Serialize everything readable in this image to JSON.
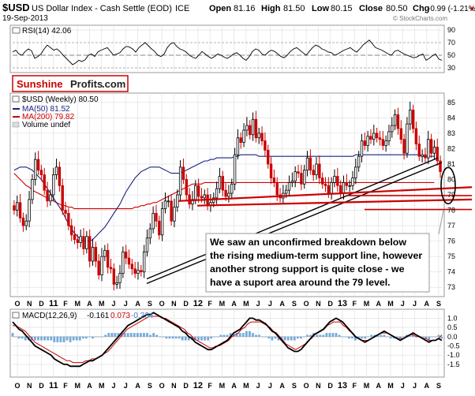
{
  "header": {
    "symbol": "$USD",
    "name": "US Dollar Index - Cash Settle (EOD)",
    "exchange": "ICE",
    "date": "19-Sep-2013",
    "open_label": "Open",
    "open": "81.16",
    "high_label": "High",
    "high": "81.50",
    "low_label": "Low",
    "low": "80.15",
    "close_label": "Close",
    "close": "80.50",
    "chg_label": "Chg",
    "chg": "-0.99 (-1.21%)",
    "chg_marker": "▼",
    "watermark": "© StockCharts.com"
  },
  "logo": {
    "part1": "Sunshine",
    "part2": "Profits",
    "part3": ".com",
    "red": "#cc0000"
  },
  "annotation": {
    "lines": [
      "We saw an unconfirmed breakdown below",
      "the rising medium-term support line, however",
      "another strong support is quite close - we",
      "have a suport area around the 79 level."
    ]
  },
  "x_labels": [
    "O",
    "N",
    "D",
    "11",
    "F",
    "M",
    "A",
    "M",
    "J",
    "J",
    "A",
    "S",
    "O",
    "N",
    "D",
    "12",
    "F",
    "M",
    "A",
    "M",
    "J",
    "J",
    "A",
    "S",
    "O",
    "N",
    "D",
    "13",
    "F",
    "M",
    "A",
    "M",
    "J",
    "J",
    "A",
    "S"
  ],
  "chart_data": [
    {
      "type": "line",
      "panel": "RSI",
      "legend": "RSI(14) 42.06",
      "ylim": [
        25,
        95
      ],
      "yticks": [
        30,
        50,
        70,
        90
      ],
      "y_labels": [
        "90",
        "70",
        "50",
        "30"
      ],
      "values": [
        55,
        58,
        52,
        50,
        56,
        60,
        57,
        45,
        48,
        52,
        60,
        66,
        62,
        58,
        60,
        56,
        50,
        45,
        40,
        35,
        38,
        42,
        40,
        43,
        50,
        52,
        48,
        55,
        58,
        60,
        62,
        56,
        50,
        52,
        54,
        60,
        64,
        63,
        60,
        55,
        62,
        66,
        70,
        65,
        60,
        56,
        50,
        48,
        52,
        62,
        68,
        70,
        64,
        60,
        58,
        55,
        50,
        47,
        45,
        50,
        56,
        52,
        48,
        45,
        48,
        52,
        50,
        47,
        45,
        48,
        52,
        54,
        50,
        45,
        42,
        48,
        56,
        60,
        58,
        52,
        50,
        55,
        58,
        56,
        52,
        48,
        46,
        50,
        56,
        60,
        62,
        58,
        54,
        50,
        56,
        62,
        66,
        64,
        60,
        58,
        55,
        54,
        50,
        52,
        55,
        58,
        60,
        62,
        58,
        55,
        60,
        66,
        70,
        74,
        68,
        62,
        60,
        58,
        55,
        52,
        50,
        56,
        58,
        55,
        52,
        50,
        48,
        46,
        47,
        50,
        52,
        42,
        45,
        49,
        52,
        44,
        42
      ],
      "colors": {
        "line": "#000000"
      }
    },
    {
      "type": "candlestick",
      "panel": "Price",
      "title": "$USD (Weekly) 80.50",
      "legend": [
        "MA(50) 81.52",
        "MA(200) 79.82",
        "Volume undef"
      ],
      "ylim": [
        72.5,
        85.5
      ],
      "yticks": [
        73,
        74,
        75,
        76,
        77,
        78,
        79,
        80,
        81,
        82,
        83,
        84,
        85
      ],
      "y_labels": [
        "85",
        "84",
        "83",
        "82",
        "81",
        "80",
        "79",
        "78",
        "77",
        "76",
        "75",
        "74",
        "73"
      ],
      "closes": [
        78.0,
        78.5,
        77.5,
        77.0,
        77.3,
        78.7,
        80.0,
        81.3,
        80.6,
        80.3,
        79.3,
        78.6,
        79.0,
        80.3,
        80.8,
        79.6,
        78.0,
        77.8,
        77.0,
        76.4,
        76.1,
        75.9,
        76.3,
        75.5,
        76.3,
        74.7,
        75.6,
        74.7,
        73.8,
        75.0,
        75.4,
        74.3,
        74.2,
        73.2,
        73.3,
        73.9,
        75.3,
        74.9,
        74.5,
        74.2,
        73.9,
        74.1,
        74.0,
        75.3,
        76.2,
        76.8,
        77.8,
        77.3,
        76.4,
        78.1,
        78.6,
        78.6,
        77.3,
        78.2,
        79.0,
        80.8,
        80.0,
        79.0,
        78.4,
        78.7,
        79.6,
        78.9,
        78.8,
        79.0,
        78.3,
        78.5,
        78.8,
        79.4,
        80.2,
        79.3,
        78.9,
        79.1,
        79.7,
        81.6,
        82.7,
        82.4,
        83.2,
        83.5,
        82.9,
        83.9,
        82.7,
        83.0,
        82.5,
        81.9,
        81.0,
        80.1,
        79.8,
        79.0,
        78.8,
        79.1,
        79.3,
        79.8,
        79.9,
        80.5,
        80.4,
        79.7,
        80.6,
        81.4,
        80.6,
        80.3,
        81.0,
        80.1,
        79.7,
        79.6,
        79.1,
        79.8,
        80.2,
        79.6,
        79.1,
        79.8,
        79.6,
        79.6,
        80.1,
        80.8,
        81.5,
        82.5,
        82.2,
        82.8,
        82.6,
        83.0,
        82.7,
        82.6,
        82.2,
        82.5,
        83.1,
        83.5,
        84.2,
        83.3,
        82.6,
        81.7,
        83.6,
        84.5,
        83.3,
        82.3,
        81.5,
        81.6,
        81.4,
        82.6,
        81.7,
        82.1,
        81.2,
        80.5
      ],
      "ma50": [
        80.6,
        80.7,
        80.8,
        80.8,
        80.8,
        80.7,
        80.6,
        80.4,
        80.2,
        80.0,
        79.7,
        79.4,
        79.1,
        78.8,
        78.5,
        78.2,
        77.9,
        77.5,
        77.1,
        76.8,
        76.5,
        76.3,
        76.1,
        76.0,
        76.0,
        76.0,
        76.1,
        76.3,
        76.5,
        76.7,
        76.9,
        77.2,
        77.5,
        77.8,
        78.1,
        78.4,
        78.8,
        79.2,
        79.5,
        79.8,
        80.1,
        80.3,
        80.5,
        80.6,
        80.7,
        80.8,
        80.8,
        80.8,
        80.8,
        80.7,
        80.6,
        80.5,
        80.4,
        80.4,
        80.4,
        80.4,
        80.5,
        80.6,
        80.7,
        80.8,
        80.9,
        81.0,
        81.1,
        81.2,
        81.2,
        81.3,
        81.3,
        81.4,
        81.4,
        81.4,
        81.4,
        81.4,
        81.4,
        81.5,
        81.5,
        81.6,
        81.6,
        81.6,
        81.6,
        81.6,
        81.6,
        81.5,
        81.5,
        81.5,
        81.5,
        81.5,
        81.5,
        81.5,
        81.5,
        81.5,
        81.5,
        81.5,
        81.5,
        81.5,
        81.5,
        81.5,
        81.5,
        81.5,
        81.5,
        81.5,
        81.5,
        81.5,
        81.5,
        81.5,
        81.5,
        81.5,
        81.5,
        81.5,
        81.5,
        81.5,
        81.5,
        81.5,
        81.5,
        81.6,
        81.6,
        81.6,
        81.6,
        81.6,
        81.6,
        81.6,
        81.6,
        81.6,
        81.6,
        81.6,
        81.6,
        81.6,
        81.6,
        81.6,
        81.6,
        81.6,
        81.6,
        81.6,
        81.6,
        81.6,
        81.6,
        81.5,
        81.5,
        81.5,
        81.5,
        81.5
      ],
      "ma200": [
        80.4,
        80.2,
        80.0,
        79.8,
        79.6,
        79.5,
        79.3,
        79.2,
        79.1,
        79.0,
        78.9,
        78.8,
        78.7,
        78.6,
        78.5,
        78.4,
        78.3,
        78.3,
        78.2,
        78.2,
        78.1,
        78.1,
        78.1,
        78.1,
        78.1,
        78.1,
        78.1,
        78.1,
        78.1,
        78.1,
        78.1,
        78.1,
        78.1,
        78.1,
        78.1,
        78.1,
        78.1,
        78.1,
        78.1,
        78.1,
        78.2,
        78.2,
        78.3,
        78.3,
        78.4,
        78.4,
        78.5,
        78.5,
        78.6,
        78.7,
        78.8,
        78.9,
        79.0,
        79.1,
        79.2,
        79.3,
        79.4,
        79.5,
        79.6,
        79.7,
        79.7,
        79.7,
        79.7,
        79.8,
        79.8,
        79.8,
        79.8,
        79.8,
        79.8,
        79.8,
        79.8,
        79.8,
        79.8,
        79.8,
        79.8,
        79.8,
        79.8,
        79.8,
        79.8,
        79.8,
        79.8,
        79.8,
        79.8,
        79.8,
        79.8,
        79.8,
        79.8,
        79.8,
        79.8,
        79.8,
        79.8,
        79.8,
        79.8,
        79.8,
        79.8,
        79.8,
        79.8,
        79.8,
        79.8,
        79.8,
        79.8,
        79.8,
        79.8,
        79.8,
        79.8,
        79.8,
        79.8,
        79.8,
        79.8,
        79.8,
        79.8,
        79.8,
        79.8,
        79.8,
        79.8,
        79.8,
        79.8,
        79.8,
        79.8,
        79.8,
        79.8,
        79.8,
        79.8,
        79.8,
        79.8,
        79.8,
        79.8,
        79.8,
        79.8,
        79.8,
        79.8,
        79.8,
        79.8,
        79.8,
        79.8,
        79.8,
        79.8,
        79.8,
        79.8,
        79.8
      ],
      "colors": {
        "up": "#000000",
        "down": "#cc0000",
        "ma50": "#1a237e",
        "ma200": "#cc0000",
        "support": "#cc0000",
        "trend": "#000000",
        "ellipse": "#000000"
      }
    },
    {
      "type": "line",
      "panel": "MACD",
      "legend_name": "MACD(12,26,9)",
      "legend_macd": "-0.161",
      "legend_signal": "0.073",
      "legend_hist": "-0.234",
      "ylim": [
        -2.1,
        1.4
      ],
      "yticks": [
        -1.5,
        -1.0,
        -0.5,
        0.0,
        0.5,
        1.0
      ],
      "y_labels": [
        "1.0",
        "0.5",
        "0.0",
        "-0.5",
        "-1.0",
        "-1.5"
      ],
      "macd": [
        0.8,
        0.6,
        0.4,
        0.3,
        0.1,
        -0.1,
        -0.3,
        -0.5,
        -0.6,
        -0.7,
        -0.8,
        -0.9,
        -1.0,
        -1.2,
        -1.3,
        -1.4,
        -1.5,
        -1.5,
        -1.6,
        -1.6,
        -1.6,
        -1.6,
        -1.5,
        -1.4,
        -1.3,
        -1.3,
        -1.2,
        -1.1,
        -1.0,
        -0.8,
        -0.6,
        -0.4,
        -0.2,
        0.0,
        0.2,
        0.4,
        0.6,
        0.7,
        0.8,
        0.9,
        1.0,
        1.1,
        1.2,
        1.2,
        1.3,
        1.2,
        1.1,
        1.0,
        0.9,
        0.8,
        0.7,
        0.6,
        0.5,
        0.3,
        0.2,
        0.0,
        -0.1,
        -0.3,
        -0.4,
        -0.5,
        -0.6,
        -0.7,
        -0.7,
        -0.6,
        -0.5,
        -0.4,
        -0.3,
        -0.2,
        0.0,
        0.2,
        0.3,
        0.4,
        0.6,
        0.8,
        1.0,
        1.0,
        0.9,
        0.9,
        0.8,
        0.7,
        0.5,
        0.3,
        0.2,
        0.0,
        -0.2,
        -0.4,
        -0.6,
        -0.7,
        -0.8,
        -0.8,
        -0.7,
        -0.5,
        -0.3,
        -0.1,
        0.1,
        0.2,
        0.3,
        0.4,
        0.6,
        0.8,
        0.9,
        1.0,
        0.9,
        0.8,
        0.6,
        0.4,
        0.2,
        0.0,
        -0.1,
        -0.2,
        -0.3,
        -0.2,
        -0.1,
        0.0,
        0.1,
        0.2,
        0.3,
        0.2,
        0.1,
        0.0,
        -0.1,
        -0.2,
        -0.1,
        0.0,
        0.1,
        0.2,
        0.1,
        0.0,
        -0.1,
        -0.2,
        -0.3,
        -0.2,
        -0.2,
        -0.1,
        -0.2
      ],
      "signal": [
        0.6,
        0.6,
        0.5,
        0.4,
        0.3,
        0.1,
        -0.1,
        -0.3,
        -0.4,
        -0.5,
        -0.6,
        -0.7,
        -0.8,
        -0.9,
        -1.0,
        -1.1,
        -1.2,
        -1.3,
        -1.3,
        -1.4,
        -1.4,
        -1.4,
        -1.4,
        -1.3,
        -1.3,
        -1.2,
        -1.2,
        -1.1,
        -1.0,
        -0.9,
        -0.8,
        -0.6,
        -0.4,
        -0.2,
        0.0,
        0.2,
        0.4,
        0.5,
        0.6,
        0.7,
        0.8,
        0.9,
        1.0,
        1.1,
        1.1,
        1.1,
        1.1,
        1.0,
        1.0,
        0.9,
        0.8,
        0.7,
        0.6,
        0.5,
        0.4,
        0.2,
        0.1,
        -0.1,
        -0.2,
        -0.3,
        -0.4,
        -0.5,
        -0.6,
        -0.6,
        -0.5,
        -0.5,
        -0.4,
        -0.3,
        -0.2,
        0.0,
        0.1,
        0.2,
        0.4,
        0.5,
        0.7,
        0.8,
        0.8,
        0.8,
        0.8,
        0.7,
        0.6,
        0.5,
        0.3,
        0.2,
        0.0,
        -0.2,
        -0.4,
        -0.5,
        -0.6,
        -0.7,
        -0.6,
        -0.5,
        -0.4,
        -0.2,
        -0.1,
        0.1,
        0.2,
        0.3,
        0.4,
        0.6,
        0.7,
        0.8,
        0.8,
        0.8,
        0.6,
        0.5,
        0.3,
        0.2,
        0.0,
        -0.1,
        -0.2,
        -0.2,
        -0.2,
        -0.1,
        0.0,
        0.1,
        0.2,
        0.2,
        0.2,
        0.1,
        0.0,
        -0.1,
        -0.1,
        -0.1,
        0.0,
        0.1,
        0.1,
        0.0,
        0.0,
        -0.1,
        -0.1,
        -0.2,
        -0.2,
        -0.2,
        -0.1,
        0.1
      ],
      "colors": {
        "macd": "#000000",
        "signal": "#cc0000",
        "hist": "#5b9bd5"
      }
    }
  ]
}
